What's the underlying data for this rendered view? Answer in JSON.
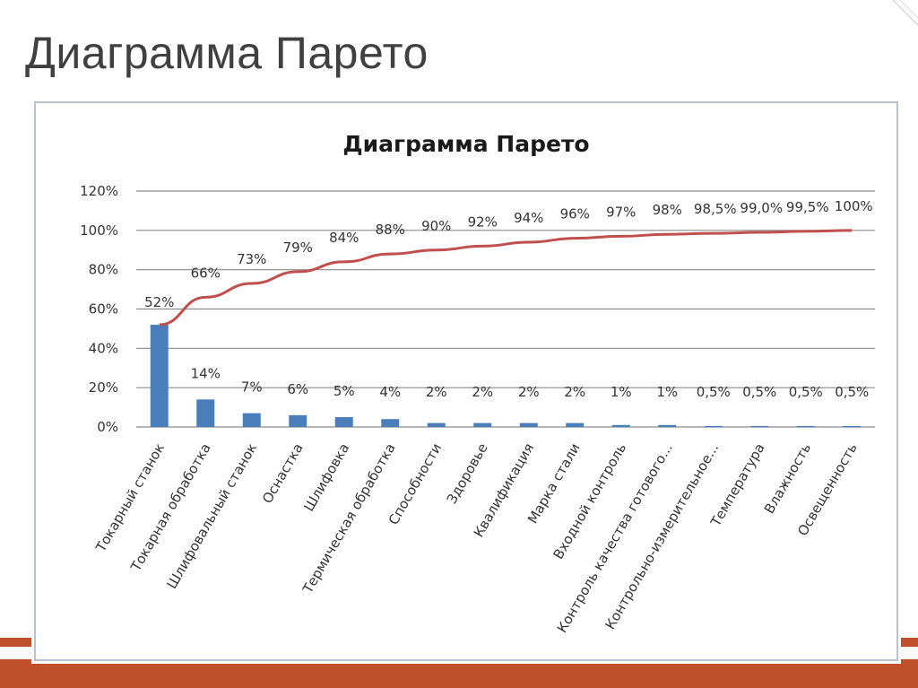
{
  "slide": {
    "title": "Диаграмма Парето"
  },
  "colors": {
    "accent": "#c0502b",
    "bar": "#4a7ebb",
    "line": "#c0504d",
    "grid": "#8c8c8c"
  },
  "chart_data": {
    "type": "bar",
    "title": "Диаграмма Парето",
    "categories": [
      "Токарный станок",
      "Токарная обработка",
      "Шлифовальный станок",
      "Оснастка",
      "Шлифовка",
      "Термическая обработка",
      "Способности",
      "Здоровье",
      "Квалификация",
      "Марка стали",
      "Входной контроль",
      "Контроль качества готового...",
      "Контрольно-измерительное...",
      "Температура",
      "Влажность",
      "Освещенность"
    ],
    "series": [
      {
        "type": "bar",
        "values": [
          0.52,
          0.14,
          0.07,
          0.06,
          0.05,
          0.04,
          0.02,
          0.02,
          0.02,
          0.02,
          0.01,
          0.01,
          0.005,
          0.005,
          0.005,
          0.005
        ],
        "labels": [
          "52%",
          "14%",
          "7%",
          "6%",
          "5%",
          "4%",
          "2%",
          "2%",
          "2%",
          "2%",
          "1%",
          "1%",
          "0,5%",
          "0,5%",
          "0,5%",
          "0,5%"
        ]
      },
      {
        "type": "line",
        "values": [
          0.52,
          0.66,
          0.73,
          0.79,
          0.84,
          0.88,
          0.9,
          0.92,
          0.94,
          0.96,
          0.97,
          0.98,
          0.985,
          0.99,
          0.995,
          1.0
        ],
        "labels": [
          "",
          "66%",
          "73%",
          "79%",
          "84%",
          "88%",
          "90%",
          "92%",
          "94%",
          "96%",
          "97%",
          "98%",
          "98,5%",
          "99,0%",
          "99,5%",
          "100%"
        ]
      }
    ],
    "y_ticks": [
      "0%",
      "20%",
      "40%",
      "60%",
      "80%",
      "100%",
      "120%"
    ],
    "ylim": [
      0,
      1.2
    ],
    "grid": true,
    "legend": false
  }
}
